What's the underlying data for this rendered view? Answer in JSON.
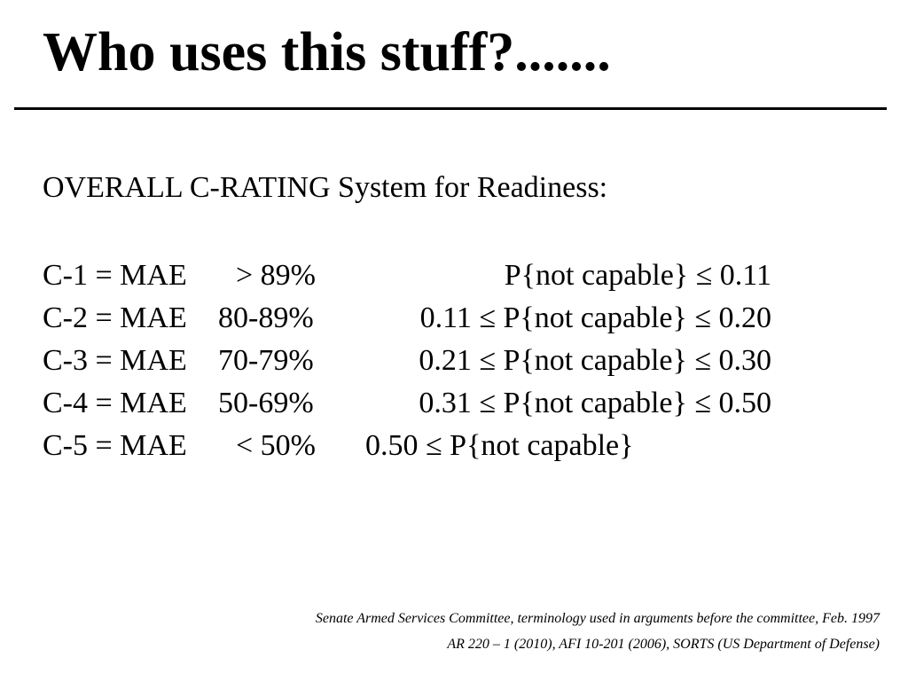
{
  "slide": {
    "title": "Who uses this stuff?.......",
    "subtitle": "OVERALL C-RATING System for Readiness:"
  },
  "ratings": [
    {
      "label": "C-1 = MAE",
      "threshold": "> 89%",
      "probability": "P{not capable} ≤ 0.11"
    },
    {
      "label": "C-2 = MAE",
      "threshold": "80-89%",
      "probability": "0.11 ≤ P{not capable} ≤ 0.20"
    },
    {
      "label": "C-3 = MAE",
      "threshold": "70-79%",
      "probability": "0.21 ≤ P{not capable} ≤ 0.30"
    },
    {
      "label": "C-4 = MAE",
      "threshold": "50-69%",
      "probability": "0.31 ≤ P{not capable} ≤ 0.50"
    },
    {
      "label": "C-5 = MAE",
      "threshold": "< 50%",
      "probability": "0.50 ≤ P{not capable}"
    }
  ],
  "sources": {
    "line1": "Senate Armed Services Committee, terminology used in arguments before the committee, Feb. 1997",
    "line2": "AR 220 – 1 (2010), AFI 10-201 (2006), SORTS (US Department of Defense)"
  }
}
